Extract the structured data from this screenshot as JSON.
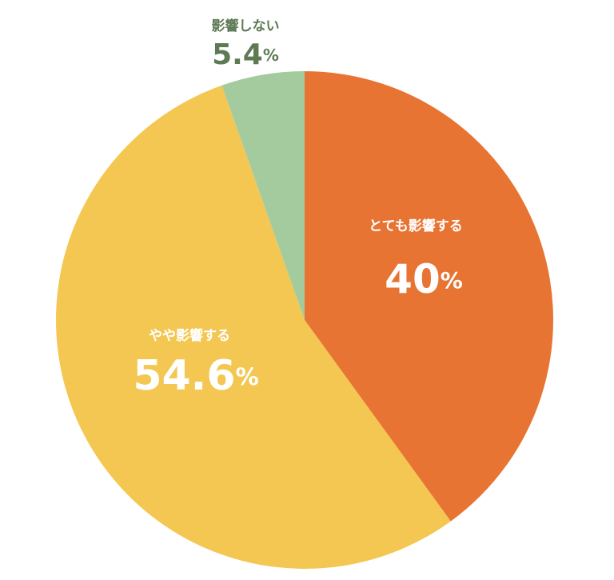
{
  "chart_data": {
    "type": "pie",
    "categories": [
      "とても影響する",
      "やや影響する",
      "影響しない"
    ],
    "values": [
      40,
      54.6,
      5.4
    ],
    "value_labels": [
      "40%",
      "54.6%",
      "5.4%"
    ],
    "colors": [
      "#e87433",
      "#f3c752",
      "#a3cb9e"
    ]
  }
}
